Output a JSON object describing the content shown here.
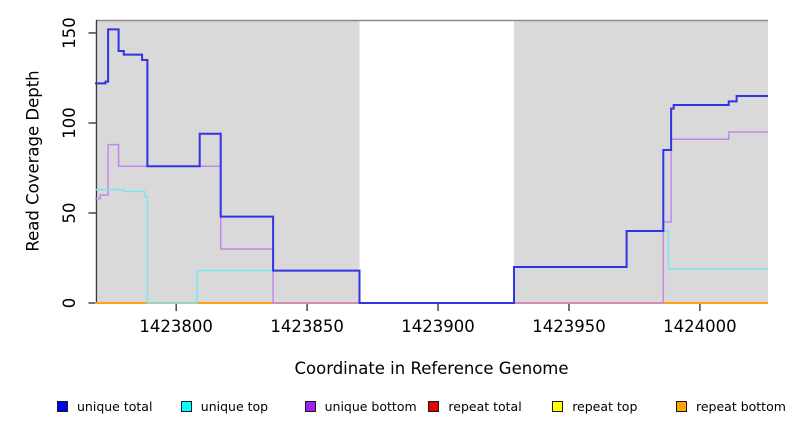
{
  "chart_data": {
    "type": "line",
    "subtype": "step-after",
    "title": "",
    "xlabel": "Coordinate in Reference Genome",
    "ylabel": "Read Coverage Depth",
    "xlim": [
      1423769,
      1424026
    ],
    "ylim": [
      0,
      157.2
    ],
    "xticks": [
      1423800,
      1423850,
      1423900,
      1423950,
      1424000
    ],
    "yticks": [
      0,
      50,
      100,
      150
    ],
    "grid": false,
    "legend_position": "bottom",
    "panel_highlight_color": "#d9d9d9",
    "panel_gap_color": "#ffffff",
    "top_border_color": "#8c8c8c",
    "axis_color": "#383838",
    "background_highlights": [
      {
        "x0": 1423770,
        "x1": 1423870
      },
      {
        "x0": 1423929,
        "x1": 1424026
      }
    ],
    "draw_order": [
      3,
      4,
      5,
      2,
      1,
      0
    ],
    "series": [
      {
        "name": "unique total",
        "color": "#0000f0",
        "line_color": "#3333e6",
        "line_width": 2,
        "points": [
          [
            1423769,
            122
          ],
          [
            1423773,
            123
          ],
          [
            1423774,
            152
          ],
          [
            1423778,
            140
          ],
          [
            1423780,
            138
          ],
          [
            1423787,
            135
          ],
          [
            1423789,
            76
          ],
          [
            1423809,
            94
          ],
          [
            1423817,
            48
          ],
          [
            1423837,
            18
          ],
          [
            1423870,
            0
          ],
          [
            1423929,
            20
          ],
          [
            1423972,
            40
          ],
          [
            1423986,
            85
          ],
          [
            1423989,
            108
          ],
          [
            1423990,
            110
          ],
          [
            1424011,
            112
          ],
          [
            1424014,
            115
          ],
          [
            1424026,
            115
          ]
        ]
      },
      {
        "name": "unique top",
        "color": "#00ffff",
        "line_color": "#7de7f0",
        "line_width": 1.5,
        "points": [
          [
            1423769,
            63
          ],
          [
            1423780,
            62
          ],
          [
            1423788,
            59
          ],
          [
            1423789,
            0
          ],
          [
            1423808,
            18
          ],
          [
            1423870,
            0
          ],
          [
            1423929,
            20
          ],
          [
            1423972,
            40
          ],
          [
            1423988,
            19
          ],
          [
            1424026,
            19
          ]
        ]
      },
      {
        "name": "unique bottom",
        "color": "#a020f0",
        "line_color": "#c387ea",
        "line_width": 1.5,
        "points": [
          [
            1423769,
            58
          ],
          [
            1423771,
            60
          ],
          [
            1423774,
            88
          ],
          [
            1423778,
            76
          ],
          [
            1423817,
            30
          ],
          [
            1423837,
            0
          ],
          [
            1423986,
            45
          ],
          [
            1423989,
            91
          ],
          [
            1424011,
            95
          ],
          [
            1424026,
            95
          ]
        ]
      },
      {
        "name": "repeat total",
        "color": "#e60000",
        "line_color": "#e60000",
        "line_width": 1.5,
        "points": [
          [
            1423769,
            0
          ],
          [
            1424026,
            0
          ]
        ]
      },
      {
        "name": "repeat top",
        "color": "#ffff00",
        "line_color": "#f5f500",
        "line_width": 1.5,
        "points": [
          [
            1423769,
            0
          ],
          [
            1424026,
            0
          ]
        ]
      },
      {
        "name": "repeat bottom",
        "color": "#ffa500",
        "line_color": "#ffa019",
        "line_width": 2,
        "points": [
          [
            1423769,
            0
          ],
          [
            1424026,
            0
          ]
        ]
      }
    ]
  }
}
